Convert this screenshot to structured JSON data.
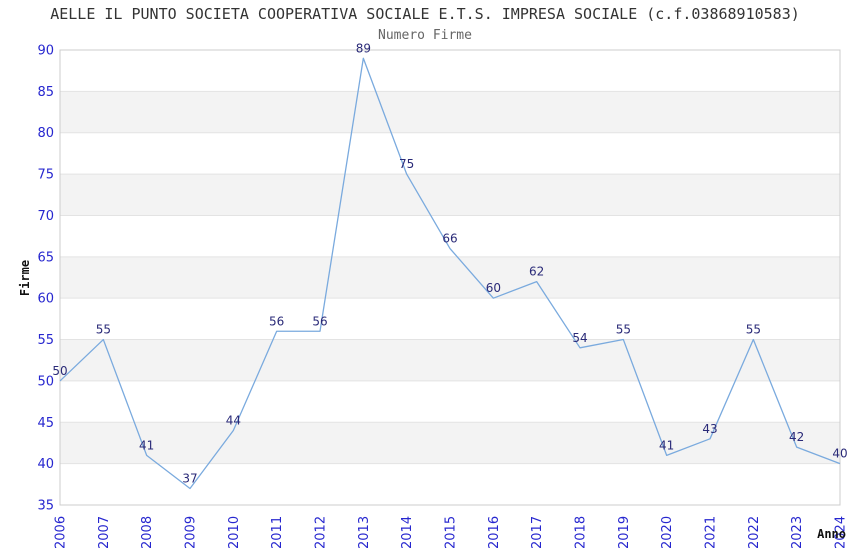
{
  "chart": {
    "title": "AELLE IL PUNTO SOCIETA COOPERATIVA SOCIALE E.T.S. IMPRESA SOCIALE (c.f.03868910583)",
    "subtitle": "Numero Firme"
  },
  "chart_data": {
    "type": "line",
    "title": "AELLE IL PUNTO SOCIETA COOPERATIVA SOCIALE E.T.S. IMPRESA SOCIALE (c.f.03868910583)",
    "subtitle": "Numero Firme",
    "xlabel": "Anno",
    "ylabel": "Firme",
    "categories": [
      "2006",
      "2007",
      "2008",
      "2009",
      "2010",
      "2011",
      "2012",
      "2013",
      "2014",
      "2015",
      "2016",
      "2017",
      "2018",
      "2019",
      "2020",
      "2021",
      "2022",
      "2023",
      "2024"
    ],
    "values": [
      50,
      55,
      41,
      37,
      44,
      56,
      56,
      89,
      75,
      66,
      60,
      62,
      54,
      55,
      41,
      43,
      55,
      42,
      40
    ],
    "ylim": [
      35,
      90
    ],
    "ytick_step": 5,
    "yticks": [
      35,
      40,
      45,
      50,
      55,
      60,
      65,
      70,
      75,
      80,
      85,
      90
    ],
    "grid": "horizontal-with-alternating-bands",
    "legend_position": "none",
    "data_labels_shown": true,
    "colors": {
      "line": "#7aaade",
      "axis_tick_labels": "#2727cf",
      "data_labels": "#2a2a78",
      "band_fill": "#f3f3f3",
      "gridline": "#e3e3e3",
      "plot_border": "#cccccc",
      "title_text": "#333333",
      "subtitle_text": "#666666",
      "axis_title_text": "#111111"
    }
  }
}
